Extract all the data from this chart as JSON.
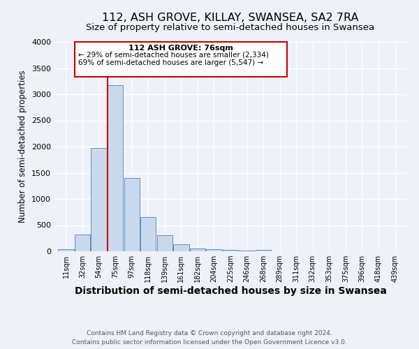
{
  "title": "112, ASH GROVE, KILLAY, SWANSEA, SA2 7RA",
  "subtitle": "Size of property relative to semi-detached houses in Swansea",
  "xlabel": "Distribution of semi-detached houses by size in Swansea",
  "ylabel": "Number of semi-detached properties",
  "bar_labels": [
    "11sqm",
    "32sqm",
    "54sqm",
    "75sqm",
    "97sqm",
    "118sqm",
    "139sqm",
    "161sqm",
    "182sqm",
    "204sqm",
    "225sqm",
    "246sqm",
    "268sqm",
    "289sqm",
    "311sqm",
    "332sqm",
    "353sqm",
    "375sqm",
    "396sqm",
    "418sqm",
    "439sqm"
  ],
  "bar_values": [
    40,
    320,
    1980,
    3180,
    1400,
    650,
    310,
    140,
    60,
    40,
    25,
    10,
    30,
    5,
    3,
    2,
    1,
    1,
    0,
    0,
    0
  ],
  "bar_color": "#c9d9ec",
  "bar_edge_color": "#5a8fc3",
  "marker_bin_index": 3,
  "annotation_title": "112 ASH GROVE: 76sqm",
  "annotation_line1": "← 29% of semi-detached houses are smaller (2,334)",
  "annotation_line2": "69% of semi-detached houses are larger (5,547) →",
  "annotation_box_color": "#ffffff",
  "annotation_box_edge": "#cc0000",
  "vline_color": "#cc0000",
  "ylim": [
    0,
    4000
  ],
  "yticks": [
    0,
    500,
    1000,
    1500,
    2000,
    2500,
    3000,
    3500,
    4000
  ],
  "footer1": "Contains HM Land Registry data © Crown copyright and database right 2024.",
  "footer2": "Contains public sector information licensed under the Open Government Licence v3.0.",
  "background_color": "#eef2f8",
  "grid_color": "#ffffff",
  "title_fontsize": 11.5,
  "subtitle_fontsize": 9.5,
  "xlabel_fontsize": 10,
  "ylabel_fontsize": 8.5,
  "footer_fontsize": 6.5
}
